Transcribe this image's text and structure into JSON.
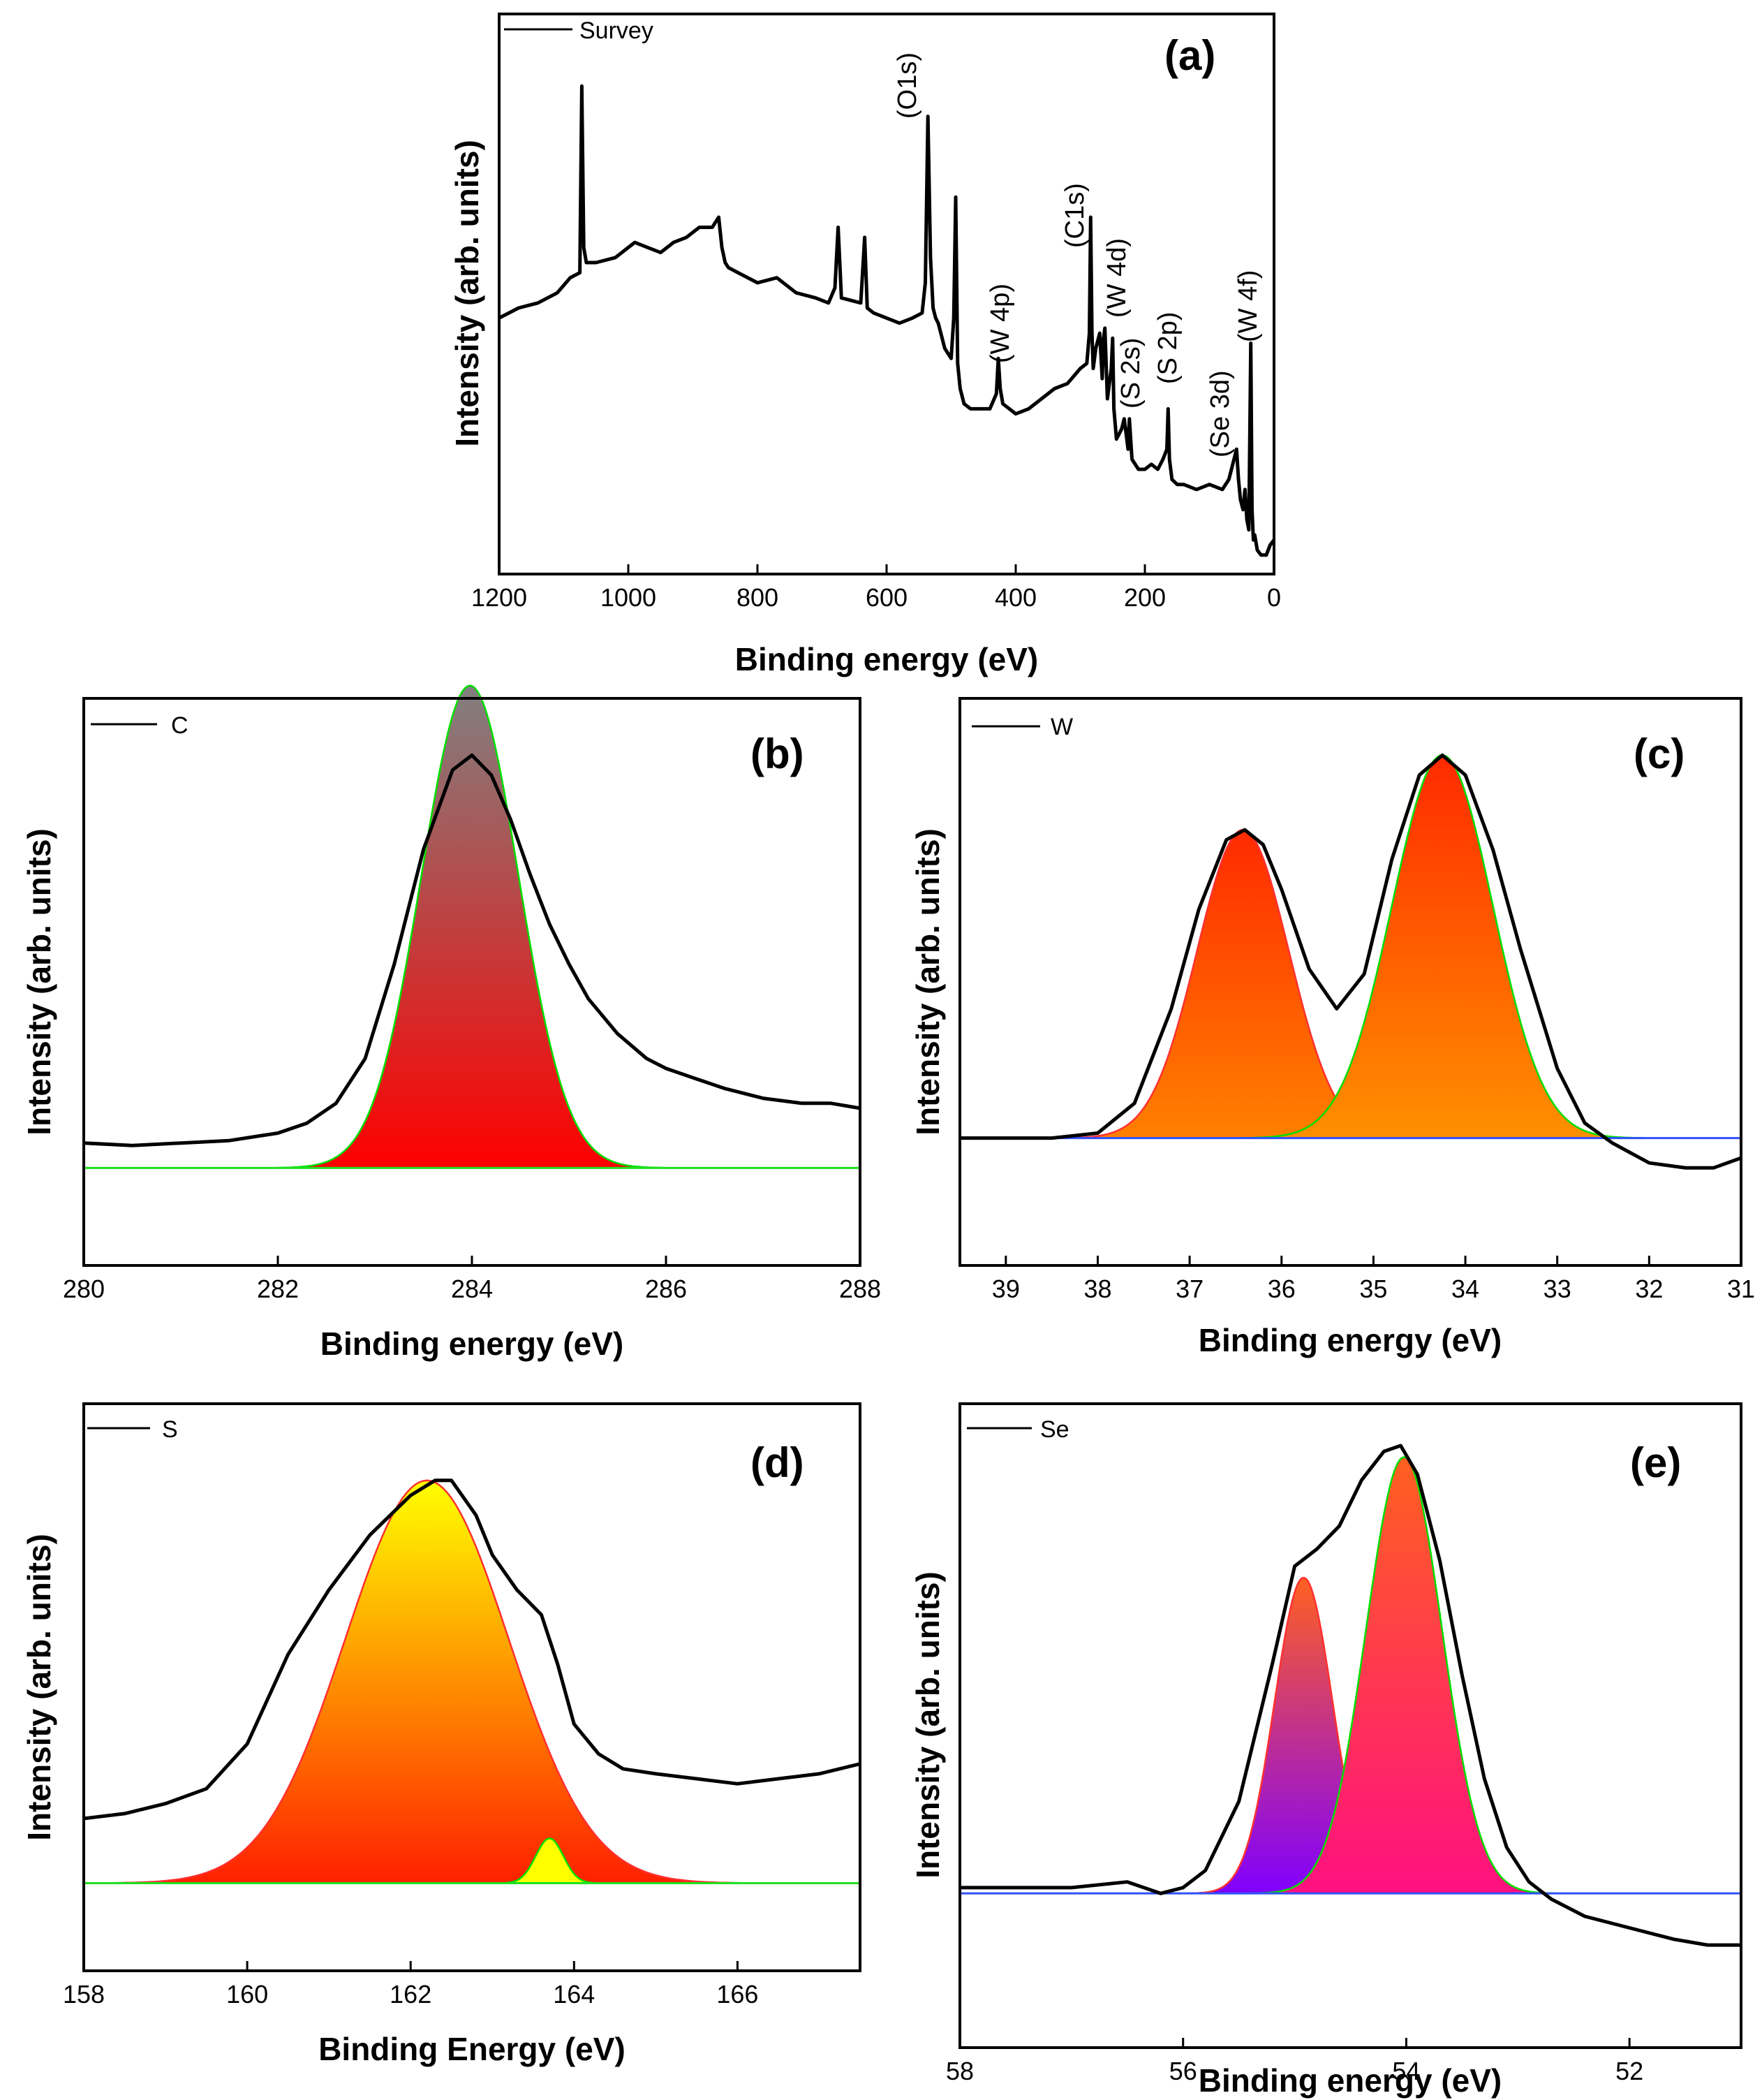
{
  "chart_data": [
    {
      "id": "a",
      "type": "line",
      "panel_label": "(a)",
      "title": "",
      "legend": "Survey",
      "xlabel": "Binding energy (eV)",
      "ylabel": "Intensity (arb. units)",
      "xlim": [
        1200,
        0
      ],
      "xticks": [
        1200,
        1000,
        800,
        600,
        400,
        200,
        0
      ],
      "xtick_labels": [
        "1200",
        "1000",
        "800",
        "600",
        "400",
        "200",
        "0"
      ],
      "ylim": [
        0,
        100
      ],
      "series": [
        {
          "name": "Survey",
          "x": [
            1200,
            1170,
            1140,
            1110,
            1090,
            1075,
            1072,
            1069,
            1065,
            1050,
            1020,
            990,
            970,
            950,
            930,
            910,
            890,
            870,
            860,
            855,
            850,
            845,
            830,
            800,
            770,
            740,
            710,
            690,
            680,
            675,
            670,
            640,
            634,
            630,
            620,
            600,
            580,
            560,
            545,
            540,
            536,
            532,
            528,
            524,
            520,
            510,
            500,
            496,
            493,
            490,
            486,
            480,
            470,
            460,
            440,
            430,
            427,
            424,
            420,
            410,
            400,
            380,
            360,
            340,
            320,
            300,
            290,
            286,
            284,
            282,
            280,
            276,
            270,
            266,
            264,
            262,
            258,
            252,
            250,
            248,
            244,
            240,
            236,
            232,
            228,
            226,
            224,
            220,
            210,
            200,
            190,
            180,
            172,
            166,
            164,
            162,
            158,
            150,
            140,
            120,
            100,
            80,
            70,
            62,
            58,
            55,
            52,
            48,
            45,
            42,
            39,
            36,
            34,
            32,
            30,
            26,
            20,
            12,
            6,
            0
          ],
          "y": [
            48,
            50,
            51,
            53,
            56,
            57,
            94,
            62,
            59,
            59,
            60,
            63,
            62,
            61,
            63,
            64,
            66,
            66,
            68,
            62,
            59,
            58,
            57,
            55,
            56,
            53,
            52,
            51,
            54,
            66,
            52,
            51,
            64,
            50,
            49,
            48,
            47,
            48,
            49,
            55,
            88,
            60,
            50,
            48,
            47,
            42,
            40,
            48,
            72,
            39,
            34,
            31,
            30,
            30,
            30,
            33,
            40,
            34,
            31,
            30,
            29,
            30,
            32,
            34,
            35,
            38,
            39,
            45,
            68,
            45,
            38,
            42,
            45,
            36,
            44,
            46,
            32,
            38,
            44,
            30,
            24,
            25,
            26,
            28,
            24,
            22,
            28,
            20,
            18,
            18,
            19,
            18,
            20,
            22,
            30,
            20,
            16,
            15,
            15,
            14,
            15,
            14,
            16,
            20,
            22,
            16,
            12,
            10,
            14,
            8,
            6,
            43,
            10,
            4,
            5,
            2,
            1,
            1,
            3,
            4
          ]
        }
      ],
      "annotations": [
        "(O1s)",
        "(W 4p)",
        "(C1s)",
        "(W 4d)",
        "(S 2s)",
        "(S 2p)",
        "(Se 3d)",
        "(W 4f)"
      ]
    },
    {
      "id": "b",
      "type": "line",
      "panel_label": "(b)",
      "title": "",
      "legend": "C",
      "xlabel": "Binding energy (eV)",
      "ylabel": "Intensity (arb. units)",
      "xlim": [
        280,
        288
      ],
      "xticks": [
        280,
        282,
        284,
        286,
        288
      ],
      "xtick_labels": [
        "280",
        "282",
        "284",
        "286",
        "288"
      ],
      "ylim": [
        0,
        100
      ],
      "baseline": 14,
      "series": [
        {
          "name": "C",
          "x": [
            280,
            280.5,
            281,
            281.5,
            282,
            282.3,
            282.6,
            282.9,
            283.2,
            283.5,
            283.8,
            284,
            284.2,
            284.4,
            284.6,
            284.8,
            285,
            285.2,
            285.5,
            285.8,
            286,
            286.3,
            286.6,
            287,
            287.4,
            287.7,
            288
          ],
          "y": [
            19,
            18.5,
            19,
            19.5,
            21,
            23,
            27,
            36,
            55,
            78,
            94,
            97,
            93,
            84,
            73,
            63,
            55,
            48,
            41,
            36,
            34,
            32,
            30,
            28,
            27,
            27,
            26
          ]
        }
      ],
      "peaks": [
        {
          "center": 283.98,
          "height": 97,
          "sigma": 0.5,
          "fill_top": "#808080",
          "fill_bottom": "#ff0000",
          "outline": "#00e000"
        }
      ]
    },
    {
      "id": "c",
      "type": "line",
      "panel_label": "(c)",
      "title": "",
      "legend": "W",
      "xlabel": "Binding energy (eV)",
      "ylabel": "Intensity (arb. units)",
      "xlim": [
        39.5,
        31
      ],
      "xticks": [
        39,
        38,
        37,
        36,
        35,
        34,
        33,
        32,
        31
      ],
      "xtick_labels": [
        "39",
        "38",
        "37",
        "36",
        "35",
        "34",
        "33",
        "32",
        "31"
      ],
      "ylim": [
        0,
        100
      ],
      "baseline": 20,
      "series": [
        {
          "name": "W",
          "x": [
            39.5,
            39,
            38.5,
            38,
            37.6,
            37.2,
            36.9,
            36.6,
            36.4,
            36.2,
            36,
            35.7,
            35.4,
            35.1,
            34.8,
            34.5,
            34.25,
            34,
            33.7,
            33.4,
            33,
            32.7,
            32.4,
            32,
            31.6,
            31.3,
            31
          ],
          "y": [
            20,
            20,
            20,
            21,
            27,
            46,
            66,
            80,
            82,
            79,
            70,
            54,
            46,
            53,
            76,
            93,
            97,
            93,
            78,
            58,
            34,
            23,
            19,
            15,
            14,
            14,
            16
          ]
        }
      ],
      "peaks": [
        {
          "center": 36.42,
          "height": 62,
          "sigma": 0.5,
          "fill_top": "#ff2a00",
          "fill_bottom": "#ff8000",
          "outline": "#ff3030"
        },
        {
          "center": 34.25,
          "height": 77,
          "sigma": 0.55,
          "fill_top": "#ff2a00",
          "fill_bottom": "#ff9000",
          "outline": "#00e000"
        }
      ]
    },
    {
      "id": "d",
      "type": "line",
      "panel_label": "(d)",
      "title": "",
      "legend": "S",
      "xlabel": "Binding Energy (eV)",
      "ylabel": "Intensity (arb. units)",
      "xlim": [
        158,
        167.5
      ],
      "xticks": [
        158,
        160,
        162,
        164,
        166
      ],
      "xtick_labels": [
        "158",
        "160",
        "162",
        "164",
        "166"
      ],
      "ylim": [
        0,
        100
      ],
      "baseline": 12,
      "series": [
        {
          "name": "S",
          "x": [
            158,
            158.5,
            159,
            159.5,
            160,
            160.5,
            161,
            161.5,
            162,
            162.3,
            162.5,
            162.8,
            163,
            163.3,
            163.6,
            163.8,
            164,
            164.3,
            164.6,
            165,
            165.5,
            166,
            166.5,
            167,
            167.5
          ],
          "y": [
            25,
            26,
            28,
            31,
            40,
            58,
            71,
            82,
            90,
            93,
            93,
            86,
            78,
            71,
            66,
            56,
            44,
            38,
            35,
            34,
            33,
            32,
            33,
            34,
            36
          ]
        }
      ],
      "peaks": [
        {
          "center": 162.2,
          "height": 81,
          "sigma": 1.0,
          "fill_top": "#ffff00",
          "fill_bottom": "#ff2000",
          "outline": "#ff3030"
        },
        {
          "center": 163.7,
          "height": 9,
          "sigma": 0.17,
          "fill_top": "#ffff00",
          "fill_bottom": "#ffff00",
          "outline": "#00e000"
        }
      ]
    },
    {
      "id": "e",
      "type": "line",
      "panel_label": "(e)",
      "title": "",
      "legend": "Se",
      "xlabel": "Binding energy (eV)",
      "ylabel": "Intensity (arb. units)",
      "xlim": [
        58,
        51
      ],
      "xticks": [
        58,
        56,
        54,
        52
      ],
      "xtick_labels": [
        "58",
        "56",
        "54",
        "52"
      ],
      "ylim": [
        0,
        100
      ],
      "baseline": 22,
      "series": [
        {
          "name": "Se",
          "x": [
            58,
            57.5,
            57,
            56.5,
            56.2,
            56,
            55.8,
            55.5,
            55.2,
            55,
            54.8,
            54.6,
            54.4,
            54.2,
            54.05,
            53.9,
            53.7,
            53.5,
            53.3,
            53.1,
            52.9,
            52.7,
            52.4,
            52,
            51.6,
            51.3,
            51
          ],
          "y": [
            23,
            23,
            23,
            24,
            22,
            23,
            26,
            38,
            62,
            79,
            82,
            86,
            94,
            99,
            100,
            95,
            80,
            60,
            42,
            30,
            24,
            21,
            18,
            16,
            14,
            13,
            13
          ]
        }
      ],
      "peaks": [
        {
          "center": 54.92,
          "height": 55,
          "sigma": 0.26,
          "fill_top": "#ff6020",
          "fill_bottom": "#8000ff",
          "outline": "#ff3030"
        },
        {
          "center": 54.02,
          "height": 76,
          "sigma": 0.34,
          "fill_top": "#ff6020",
          "fill_bottom": "#ff1080",
          "outline": "#00e000"
        }
      ]
    }
  ]
}
